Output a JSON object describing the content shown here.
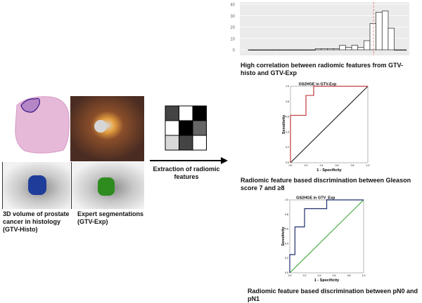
{
  "left": {
    "histo_caption": "3D volume of prostate cancer in histology (GTV-Histo)",
    "expert_caption": "Expert segmentations (GTV-Exp)",
    "histo_seg_color": "#1e3c9a",
    "expert_seg_color": "#2e8b1e"
  },
  "middle": {
    "feature_grid": [
      [
        "#444444",
        "#ffffff",
        "#000000"
      ],
      [
        "#ffffff",
        "#000000",
        "#666666"
      ],
      [
        "#d8d8d8",
        "#444444",
        "#ffffff"
      ]
    ],
    "arrow_caption": "Extraction of radiomic features"
  },
  "chart_data": [
    {
      "type": "bar",
      "title": "",
      "xlabel": "",
      "ylabel": "",
      "ylim": [
        0,
        40
      ],
      "yticks": [
        "0",
        "10",
        "20",
        "30",
        "40"
      ],
      "values": [
        0,
        0,
        0,
        0,
        0,
        0,
        0,
        0,
        0,
        0,
        0,
        1,
        1,
        1,
        1,
        4,
        2,
        4,
        2,
        8,
        23,
        33,
        34,
        19,
        0,
        0
      ],
      "reference_line": {
        "style": "dashed",
        "color": "#e88a8a",
        "position_bin": 20.6
      },
      "grid": true,
      "caption": "High correlation between radiomic features from GTV-histo and GTV-Exp"
    },
    {
      "type": "line",
      "title": "GS2HGE in GTV-Exp",
      "xlabel": "1 - Specificity",
      "ylabel": "Sensitivity",
      "xlim": [
        0,
        1
      ],
      "ylim": [
        0,
        1
      ],
      "ticks": [
        "0.0",
        "0.2",
        "0.4",
        "0.6",
        "0.8",
        "1.0"
      ],
      "curve_color": "#c0393b",
      "reference_color": "#111111",
      "roc": [
        [
          0,
          0
        ],
        [
          0,
          0.62
        ],
        [
          0.2,
          0.62
        ],
        [
          0.2,
          0.88
        ],
        [
          0.3,
          0.88
        ],
        [
          0.3,
          1
        ],
        [
          1,
          1
        ]
      ],
      "caption": "Radiomic feature based discrimination between Gleason score 7 and ≥8"
    },
    {
      "type": "line",
      "title": "GS2HGE in GTV_Exp",
      "xlabel": "1 - Specificity",
      "ylabel": "Sensitivity",
      "xlim": [
        0,
        1
      ],
      "ylim": [
        0,
        1
      ],
      "ticks": [
        "0.0",
        "0.2",
        "0.4",
        "0.6",
        "0.8",
        "1.0"
      ],
      "curve_color": "#1f2f6e",
      "reference_color": "#2aa02a",
      "roc": [
        [
          0,
          0
        ],
        [
          0,
          0.25
        ],
        [
          0.07,
          0.25
        ],
        [
          0.07,
          0.63
        ],
        [
          0.2,
          0.63
        ],
        [
          0.2,
          0.88
        ],
        [
          0.5,
          0.88
        ],
        [
          0.5,
          1
        ],
        [
          1,
          1
        ]
      ],
      "caption": "Radiomic feature based discrimination between pN0 and pN1"
    }
  ]
}
